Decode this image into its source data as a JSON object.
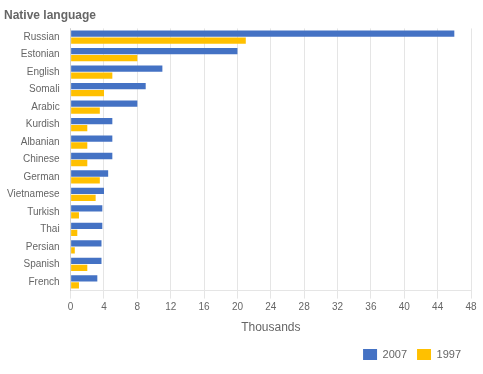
{
  "chart_data": {
    "type": "bar",
    "orientation": "horizontal",
    "title": "Native language",
    "xlabel": "Thousands",
    "categories": [
      "Russian",
      "Estonian",
      "English",
      "Somali",
      "Arabic",
      "Kurdish",
      "Albanian",
      "Chinese",
      "German",
      "Vietnamese",
      "Turkish",
      "Thai",
      "Persian",
      "Spanish",
      "French"
    ],
    "series": [
      {
        "name": "2007",
        "color": "#4472C4",
        "values": [
          46,
          20,
          11,
          9,
          8,
          5,
          5,
          5,
          4.5,
          4,
          3.8,
          3.8,
          3.7,
          3.7,
          3.2
        ]
      },
      {
        "name": "1997",
        "color": "#FFC000",
        "values": [
          21,
          8,
          5,
          4,
          3.5,
          2,
          2,
          2,
          3.5,
          3,
          1,
          0.8,
          0.5,
          2,
          1
        ]
      }
    ],
    "xlim": [
      0,
      48
    ],
    "xticks": [
      0,
      4,
      8,
      12,
      16,
      20,
      24,
      28,
      32,
      36,
      40,
      44,
      48
    ],
    "grid": true,
    "legend": "lower right"
  }
}
